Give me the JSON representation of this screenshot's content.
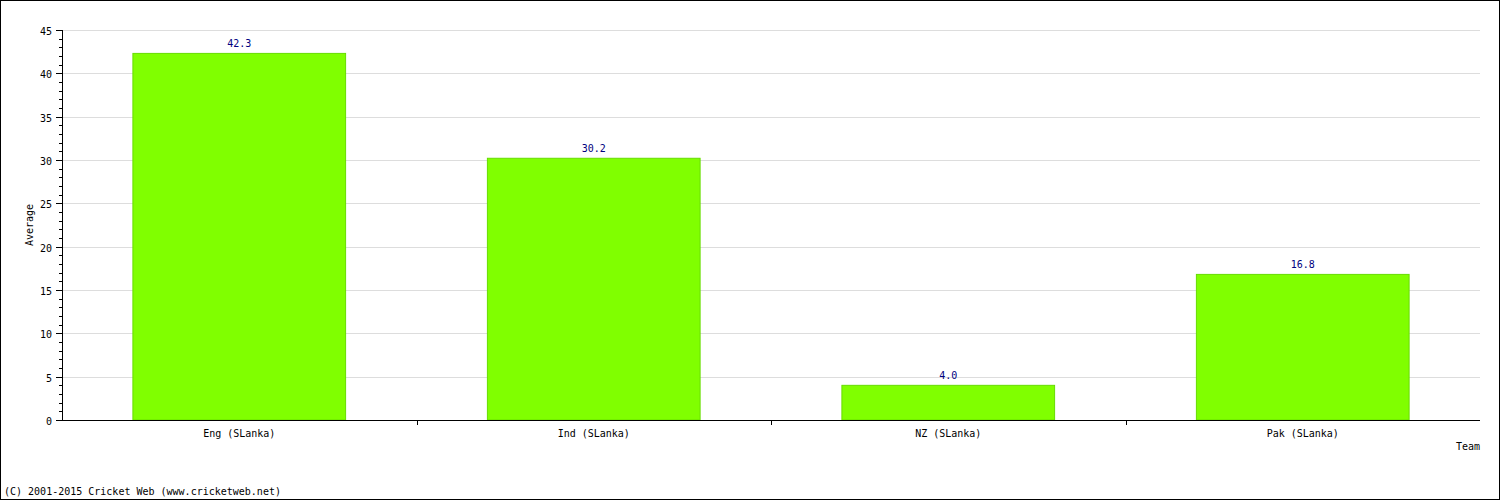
{
  "chart_data": {
    "type": "bar",
    "categories": [
      "Eng (SLanka)",
      "Ind (SLanka)",
      "NZ (SLanka)",
      "Pak (SLanka)"
    ],
    "values": [
      42.3,
      30.2,
      4.0,
      16.8
    ],
    "value_labels": [
      "42.3",
      "30.2",
      "4.0",
      "16.8"
    ],
    "color": "#80ff00",
    "ylim": [
      0,
      45
    ],
    "yticks": [
      0,
      5,
      10,
      15,
      20,
      25,
      30,
      35,
      40,
      45
    ],
    "grid": true,
    "data_labels": true,
    "x_label": "Team",
    "y_label": "Average",
    "annotations": [
      "(C) 2001-2015 Cricket Web (www.cricketweb.net)"
    ]
  }
}
